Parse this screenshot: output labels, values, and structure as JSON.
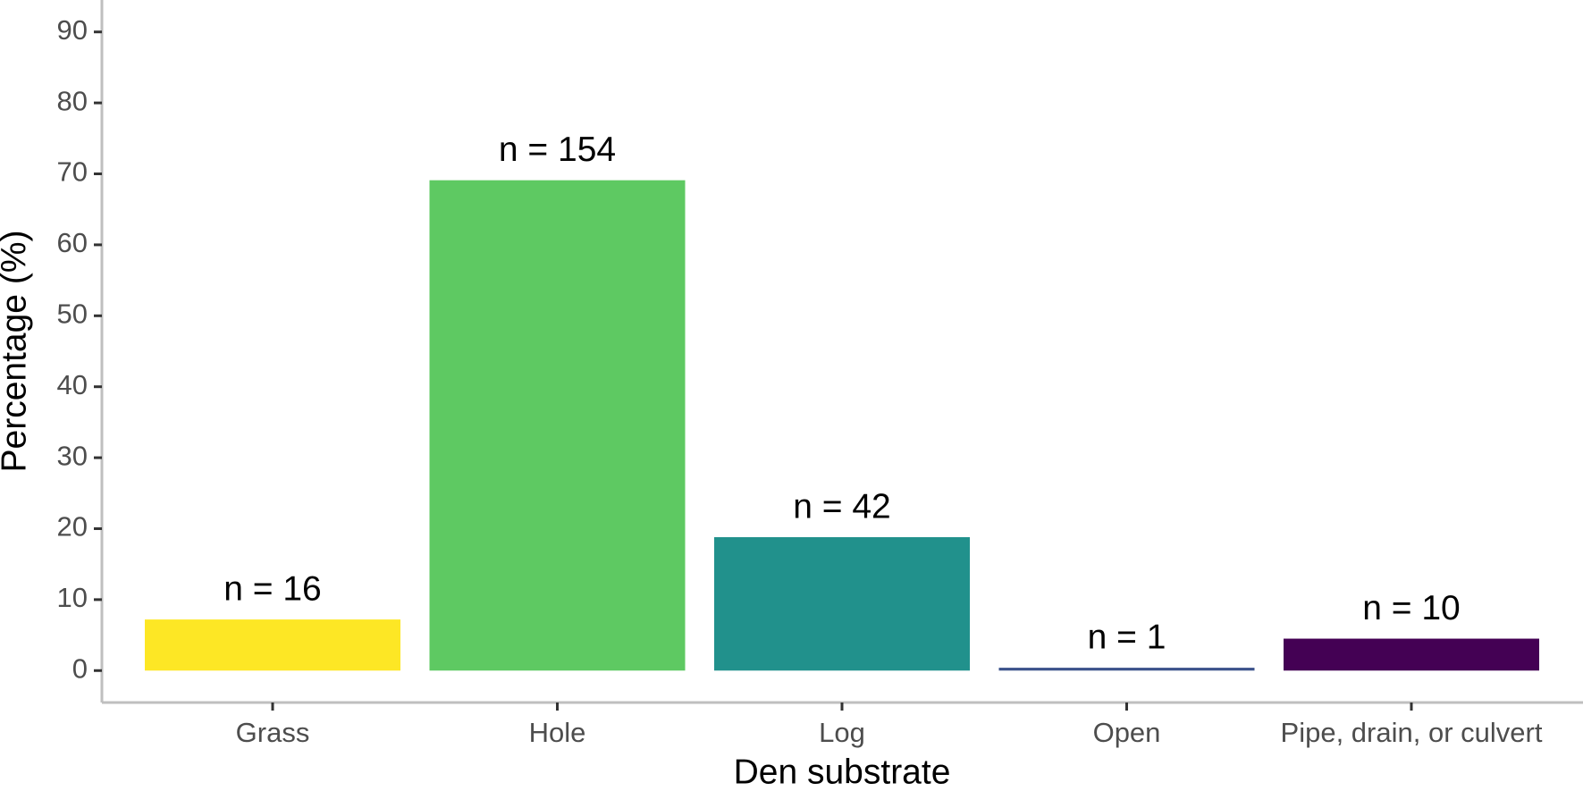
{
  "chart_data": {
    "type": "bar",
    "x_label": "Den substrate",
    "y_label": "Percentage (%)",
    "categories": [
      "Grass",
      "Hole",
      "Log",
      "Open",
      "Pipe, drain, or culvert"
    ],
    "values": [
      7.2,
      69.1,
      18.8,
      0.4,
      4.5
    ],
    "bar_labels": [
      "n =  16",
      "n =  154",
      "n =  42",
      "n =  1",
      "n =  10"
    ],
    "colors": [
      "#fde725",
      "#5ec962",
      "#21918c",
      "#3b528b",
      "#440154"
    ],
    "ylim": [
      -4.5,
      94.5
    ],
    "yticks": [
      0,
      10,
      20,
      30,
      40,
      50,
      60,
      70,
      80,
      90
    ],
    "grid": false
  }
}
